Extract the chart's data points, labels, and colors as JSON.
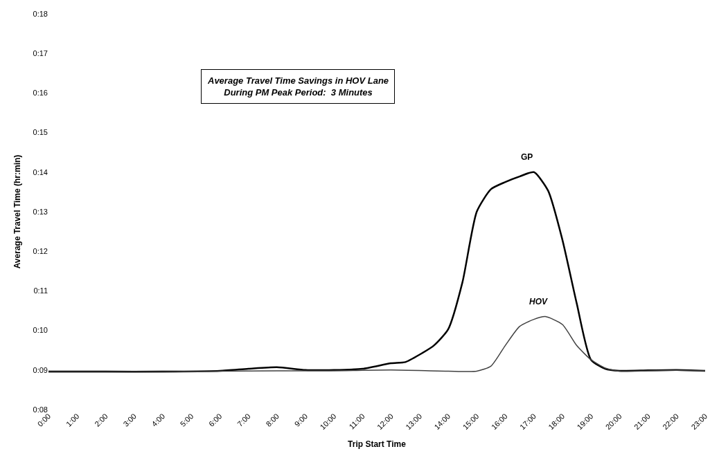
{
  "chart_data": {
    "type": "line",
    "xlabel": "Trip Start Time",
    "ylabel": "Average Travel Time (hr:min)",
    "annotations": [
      "Average Travel Time Savings in HOV Lane\nDuring PM Peak Period:  3 Minutes"
    ],
    "series": [
      {
        "name": "GP",
        "color": "#000000",
        "x": [
          0,
          2,
          4,
          6,
          7,
          8,
          9,
          10,
          11,
          12,
          12.5,
          13,
          13.5,
          14,
          14.5,
          15,
          15.5,
          16,
          16.5,
          17,
          17.5,
          18,
          18.5,
          19,
          19.5,
          20,
          21,
          22,
          23
        ],
        "values": [
          8.96,
          8.96,
          8.96,
          8.98,
          9.03,
          9.07,
          9.0,
          9.0,
          9.03,
          9.17,
          9.2,
          9.39,
          9.62,
          10.03,
          11.22,
          13.0,
          13.57,
          13.75,
          13.89,
          14.0,
          13.53,
          12.29,
          10.69,
          9.26,
          9.03,
          8.98,
          8.99,
          9.0,
          8.98
        ]
      },
      {
        "name": "HOV",
        "color": "#404040",
        "x": [
          0,
          2,
          4,
          6,
          8,
          10,
          12,
          14,
          15,
          15.5,
          16,
          16.5,
          17,
          17.4,
          18,
          18.5,
          19,
          19.5,
          20,
          21,
          22,
          23
        ],
        "values": [
          8.95,
          8.95,
          8.95,
          8.97,
          8.98,
          8.98,
          9.0,
          8.97,
          8.97,
          9.1,
          9.62,
          10.1,
          10.28,
          10.35,
          10.15,
          9.62,
          9.26,
          9.05,
          8.97,
          8.98,
          8.99,
          8.98
        ]
      }
    ],
    "xlim": [
      0,
      23
    ],
    "xticks": [
      {
        "value": 0,
        "label": "0:00"
      },
      {
        "value": 1,
        "label": "1:00"
      },
      {
        "value": 2,
        "label": "2:00"
      },
      {
        "value": 3,
        "label": "3:00"
      },
      {
        "value": 4,
        "label": "4:00"
      },
      {
        "value": 5,
        "label": "5:00"
      },
      {
        "value": 6,
        "label": "6:00"
      },
      {
        "value": 7,
        "label": "7:00"
      },
      {
        "value": 8,
        "label": "8:00"
      },
      {
        "value": 9,
        "label": "9:00"
      },
      {
        "value": 10,
        "label": "10:00"
      },
      {
        "value": 11,
        "label": "11:00"
      },
      {
        "value": 12,
        "label": "12:00"
      },
      {
        "value": 13,
        "label": "13:00"
      },
      {
        "value": 14,
        "label": "14:00"
      },
      {
        "value": 15,
        "label": "15:00"
      },
      {
        "value": 16,
        "label": "16:00"
      },
      {
        "value": 17,
        "label": "17:00"
      },
      {
        "value": 18,
        "label": "18:00"
      },
      {
        "value": 19,
        "label": "19:00"
      },
      {
        "value": 20,
        "label": "20:00"
      },
      {
        "value": 21,
        "label": "21:00"
      },
      {
        "value": 22,
        "label": "22:00"
      },
      {
        "value": 23,
        "label": "23:00"
      }
    ],
    "ylim": [
      8,
      18
    ],
    "yticks": [
      {
        "value": 8,
        "label": "0:08"
      },
      {
        "value": 9,
        "label": "0:09"
      },
      {
        "value": 10,
        "label": "0:10"
      },
      {
        "value": 11,
        "label": "0:11"
      },
      {
        "value": 12,
        "label": "0:12"
      },
      {
        "value": 13,
        "label": "0:13"
      },
      {
        "value": 14,
        "label": "0:14"
      },
      {
        "value": 15,
        "label": "0:15"
      },
      {
        "value": 16,
        "label": "0:16"
      },
      {
        "value": 17,
        "label": "0:17"
      },
      {
        "value": 18,
        "label": "0:18"
      }
    ],
    "legend": false,
    "marker": "none",
    "line_style": "solid"
  }
}
